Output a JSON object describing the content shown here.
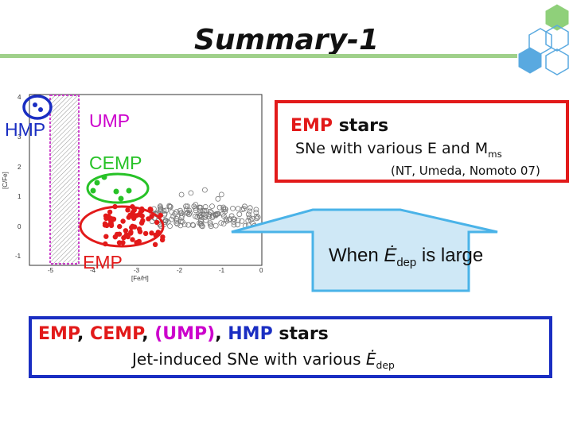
{
  "slide": {
    "title": "Summary-1",
    "colors": {
      "title_bar": "#9fd08a",
      "red": "#e21a1a",
      "blue": "#1a2ec2",
      "magenta": "#cc00cc",
      "green": "#27c227",
      "callout_fill": "#cfe8f6",
      "callout_stroke": "#4ab3e8"
    },
    "decor": {
      "hexagons_icon": "hexagon-cluster-icon"
    }
  },
  "plot": {
    "xlabel": "[Fe/H]",
    "ylabel": "[C/Fe]",
    "x_ticks": [
      "-5",
      "-4",
      "-3",
      "-2",
      "-1",
      "0"
    ],
    "y_ticks": [
      "4",
      "3",
      "2",
      "1",
      "0",
      "-1"
    ]
  },
  "labels": {
    "hmp": "HMP",
    "ump": "UMP",
    "cemp": "CEMP",
    "emp": "EMP"
  },
  "emp_box": {
    "heading_emp": "EMP",
    "heading_stars": " stars",
    "line2_prefix": "SNe with various E and M",
    "line2_sub": "ms",
    "citation": "(NT, Umeda, Nomoto 07)"
  },
  "callout": {
    "prefix": "When ",
    "symbol": "Ė",
    "sub": "dep",
    "suffix": " is large"
  },
  "bottom_box": {
    "emp": "EMP",
    "sep1": ", ",
    "cemp": "CEMP",
    "sep2": ", ",
    "ump": "(UMP)",
    "sep3": ", ",
    "hmp": "HMP",
    "stars": " stars",
    "line2_prefix": "Jet-induced SNe with various ",
    "symbol": "Ė",
    "sub": "dep"
  }
}
